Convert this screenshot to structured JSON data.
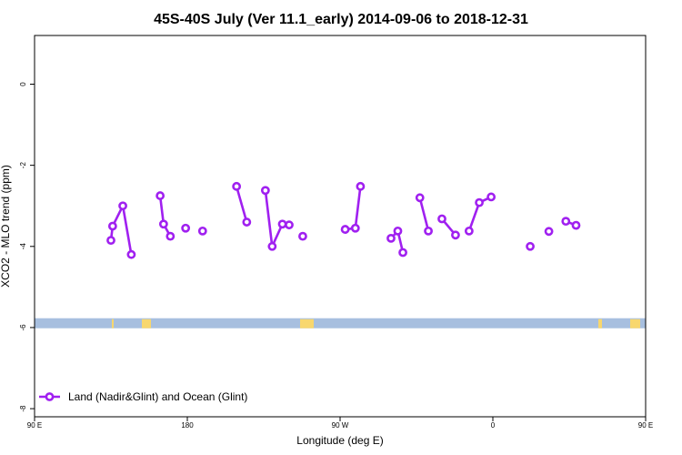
{
  "chart_data": {
    "type": "line",
    "title": "45S-40S July (Ver 11.1_early)   2014-09-06 to 2018-12-31",
    "xlabel": "Longitude (deg E)",
    "ylabel": "XCO2 - MLO trend (ppm)",
    "xlim": [
      90,
      450
    ],
    "ylim": [
      -8.2,
      1.2
    ],
    "x_ticks": [
      {
        "value": 90,
        "label": "90 E"
      },
      {
        "value": 180,
        "label": "180"
      },
      {
        "value": 270,
        "label": "90 W"
      },
      {
        "value": 360,
        "label": "0"
      },
      {
        "value": 450,
        "label": "90 E"
      },
      {
        "value": 540,
        "label": "180"
      }
    ],
    "y_ticks": [
      {
        "value": 0,
        "label": "0"
      },
      {
        "value": -2,
        "label": "-2"
      },
      {
        "value": -4,
        "label": "-4"
      },
      {
        "value": -6,
        "label": "-6"
      },
      {
        "value": -8,
        "label": "-8"
      }
    ],
    "series": [
      {
        "name": "Land (Nadir&Glint) and Ocean (Glint)",
        "color": "#a020f0",
        "segments": [
          [
            [
              135,
              -3.85
            ],
            [
              136,
              -3.5
            ],
            [
              142,
              -3.0
            ],
            [
              147,
              -4.2
            ]
          ],
          [
            [
              164,
              -2.75
            ],
            [
              166,
              -3.45
            ],
            [
              170,
              -3.75
            ]
          ],
          [
            [
              179,
              -3.55
            ]
          ],
          [
            [
              189,
              -3.62
            ]
          ],
          [
            [
              209,
              -2.52
            ],
            [
              215,
              -3.4
            ]
          ],
          [
            [
              226,
              -2.62
            ],
            [
              230,
              -4.0
            ],
            [
              236,
              -3.45
            ],
            [
              240,
              -3.47
            ]
          ],
          [
            [
              248,
              -3.75
            ]
          ],
          [
            [
              273,
              -3.58
            ],
            [
              279,
              -3.55
            ],
            [
              282,
              -2.52
            ]
          ],
          [
            [
              300,
              -3.8
            ],
            [
              304,
              -3.62
            ],
            [
              307,
              -4.15
            ]
          ],
          [
            [
              317,
              -2.8
            ],
            [
              322,
              -3.62
            ]
          ],
          [
            [
              330,
              -3.32
            ],
            [
              338,
              -3.72
            ]
          ],
          [
            [
              346,
              -3.62
            ],
            [
              352,
              -2.92
            ],
            [
              359,
              -2.78
            ]
          ],
          [
            [
              382,
              -4.0
            ]
          ],
          [
            [
              393,
              -3.63
            ]
          ],
          [
            [
              403,
              -3.38
            ],
            [
              409,
              -3.48
            ]
          ]
        ]
      }
    ],
    "surface_band": {
      "y": -5.95,
      "ocean_color": "#a7bfdf",
      "land_color": "#f8d76e"
    },
    "legend": {
      "position": "bottom-left"
    }
  }
}
